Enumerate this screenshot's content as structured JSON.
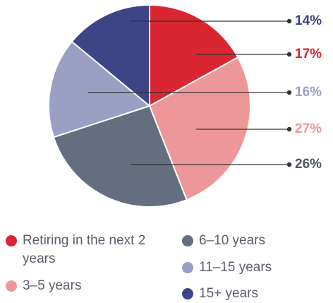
{
  "chart_data": {
    "type": "pie",
    "categories": [
      "Retiring in the next 2 years",
      "3–5 years",
      "6–10 years",
      "11–15 years",
      "15+ years"
    ],
    "values": [
      17,
      27,
      26,
      16,
      14
    ],
    "value_labels": [
      "17%",
      "27%",
      "26%",
      "16%",
      "14%"
    ],
    "colors": [
      "#d92631",
      "#ee9799",
      "#646e7e",
      "#9b9fc3",
      "#3d4587"
    ],
    "legend": "bottom"
  }
}
